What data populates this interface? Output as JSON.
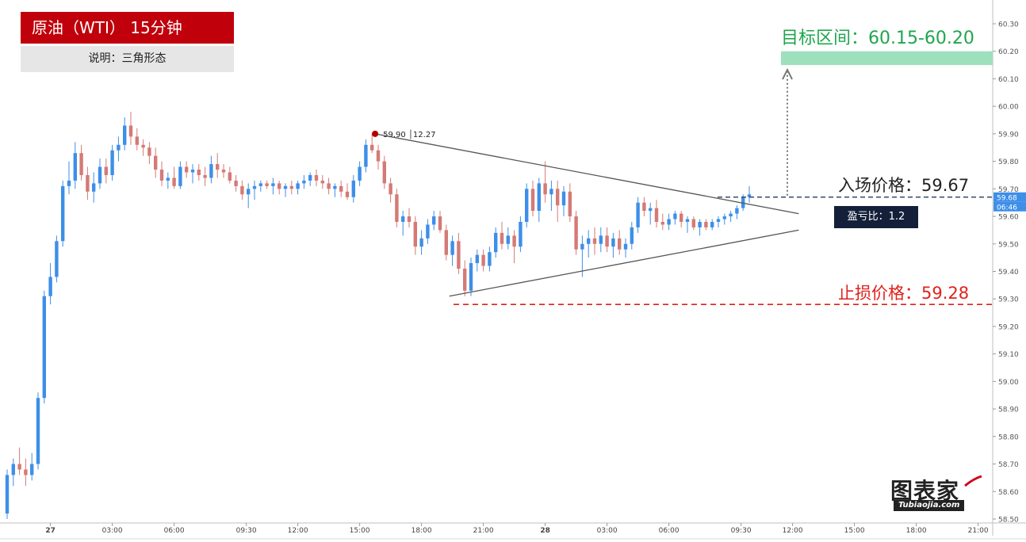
{
  "header": {
    "title": "原油（WTI） 15分钟",
    "description": "说明：三角形态"
  },
  "annotations": {
    "target_text": "目标区间：60.15-60.20",
    "entry_text": "入场价格：59.67",
    "stop_text": "止损价格：59.28",
    "risk_reward_text": "盈亏比：1.2",
    "high_marker_price": "59.90",
    "high_marker_time": "12.27",
    "current_price_tag": "59.68",
    "countdown_tag": "06:46"
  },
  "watermark": {
    "main": "图表家",
    "sub": "Tubiaojia.com"
  },
  "colors": {
    "up": "#3d8fe8",
    "down": "#d47a75",
    "target_zone": "#9edfbc",
    "target_text": "#1fa64d",
    "stop_line": "#e0211c",
    "entry_line": "#3b4a66",
    "triangle_line": "#555555",
    "title_bg": "#c0000b"
  },
  "chart_data": {
    "type": "candlestick",
    "title": "原油（WTI） 15分钟",
    "y_axis": {
      "side": "right",
      "range": [
        58.5,
        60.35
      ],
      "ticks": [
        "60.30",
        "60.20",
        "60.10",
        "60.00",
        "59.90",
        "59.80",
        "59.70",
        "59.60",
        "59.50",
        "59.40",
        "59.30",
        "59.20",
        "59.10",
        "59.00",
        "58.90",
        "58.80",
        "58.70",
        "58.60",
        "58.50"
      ]
    },
    "x_axis": {
      "labels": [
        {
          "label": "27",
          "t": 7
        },
        {
          "label": "03:00",
          "t": 17
        },
        {
          "label": "06:00",
          "t": 27
        },
        {
          "label": "09:30",
          "t": 38.67
        },
        {
          "label": "12:00",
          "t": 47
        },
        {
          "label": "15:00",
          "t": 57
        },
        {
          "label": "18:00",
          "t": 67
        },
        {
          "label": "21:00",
          "t": 77
        },
        {
          "label": "28",
          "t": 87
        },
        {
          "label": "03:00",
          "t": 97
        },
        {
          "label": "06:00",
          "t": 107
        },
        {
          "label": "09:30",
          "t": 118.67
        },
        {
          "label": "12:00",
          "t": 127
        },
        {
          "label": "15:00",
          "t": 137
        },
        {
          "label": "18:00",
          "t": 147
        },
        {
          "label": "21:00",
          "t": 157
        }
      ]
    },
    "grid": false,
    "candles_ohlc": [
      [
        58.52,
        58.68,
        58.5,
        58.66
      ],
      [
        58.66,
        58.72,
        58.62,
        58.7
      ],
      [
        58.7,
        58.76,
        58.66,
        58.68
      ],
      [
        58.68,
        58.72,
        58.62,
        58.66
      ],
      [
        58.66,
        58.74,
        58.64,
        58.7
      ],
      [
        58.7,
        58.96,
        58.68,
        58.94
      ],
      [
        58.94,
        59.33,
        58.92,
        59.31
      ],
      [
        59.31,
        59.43,
        59.28,
        59.38
      ],
      [
        59.38,
        59.53,
        59.36,
        59.51
      ],
      [
        59.51,
        59.73,
        59.49,
        59.71
      ],
      [
        59.71,
        59.8,
        59.68,
        59.73
      ],
      [
        59.73,
        59.87,
        59.7,
        59.83
      ],
      [
        59.83,
        59.86,
        59.73,
        59.75
      ],
      [
        59.75,
        59.78,
        59.66,
        59.69
      ],
      [
        59.69,
        59.76,
        59.65,
        59.72
      ],
      [
        59.72,
        59.81,
        59.7,
        59.78
      ],
      [
        59.78,
        59.81,
        59.72,
        59.75
      ],
      [
        59.75,
        59.86,
        59.73,
        59.84
      ],
      [
        59.84,
        59.89,
        59.8,
        59.86
      ],
      [
        59.86,
        59.96,
        59.84,
        59.93
      ],
      [
        59.93,
        59.98,
        59.86,
        59.89
      ],
      [
        59.89,
        59.92,
        59.84,
        59.86
      ],
      [
        59.86,
        59.88,
        59.82,
        59.85
      ],
      [
        59.85,
        59.87,
        59.79,
        59.82
      ],
      [
        59.82,
        59.85,
        59.74,
        59.77
      ],
      [
        59.77,
        59.8,
        59.71,
        59.73
      ],
      [
        59.73,
        59.76,
        59.7,
        59.74
      ],
      [
        59.74,
        59.78,
        59.7,
        59.71
      ],
      [
        59.71,
        59.8,
        59.7,
        59.78
      ],
      [
        59.78,
        59.8,
        59.74,
        59.76
      ],
      [
        59.76,
        59.79,
        59.72,
        59.77
      ],
      [
        59.77,
        59.79,
        59.73,
        59.75
      ],
      [
        59.75,
        59.78,
        59.71,
        59.74
      ],
      [
        59.74,
        59.82,
        59.72,
        59.79
      ],
      [
        59.79,
        59.83,
        59.74,
        59.77
      ],
      [
        59.77,
        59.79,
        59.74,
        59.76
      ],
      [
        59.76,
        59.78,
        59.72,
        59.73
      ],
      [
        59.73,
        59.75,
        59.69,
        59.71
      ],
      [
        59.71,
        59.73,
        59.66,
        59.68
      ],
      [
        59.68,
        59.72,
        59.63,
        59.7
      ],
      [
        59.7,
        59.73,
        59.66,
        59.71
      ],
      [
        59.71,
        59.73,
        59.69,
        59.72
      ],
      [
        59.72,
        59.73,
        59.7,
        59.71
      ],
      [
        59.71,
        59.74,
        59.68,
        59.72
      ],
      [
        59.72,
        59.73,
        59.68,
        59.7
      ],
      [
        59.7,
        59.72,
        59.67,
        59.71
      ],
      [
        59.71,
        59.73,
        59.68,
        59.7
      ],
      [
        59.7,
        59.73,
        59.68,
        59.72
      ],
      [
        59.72,
        59.75,
        59.7,
        59.73
      ],
      [
        59.73,
        59.76,
        59.71,
        59.75
      ],
      [
        59.75,
        59.77,
        59.71,
        59.73
      ],
      [
        59.73,
        59.75,
        59.7,
        59.72
      ],
      [
        59.72,
        59.74,
        59.68,
        59.7
      ],
      [
        59.7,
        59.72,
        59.67,
        59.71
      ],
      [
        59.71,
        59.73,
        59.67,
        59.69
      ],
      [
        59.69,
        59.72,
        59.66,
        59.67
      ],
      [
        59.67,
        59.75,
        59.65,
        59.73
      ],
      [
        59.73,
        59.8,
        59.71,
        59.78
      ],
      [
        59.78,
        59.88,
        59.76,
        59.86
      ],
      [
        59.86,
        59.9,
        59.83,
        59.84
      ],
      [
        59.84,
        59.86,
        59.77,
        59.8
      ],
      [
        59.8,
        59.82,
        59.7,
        59.72
      ],
      [
        59.72,
        59.74,
        59.65,
        59.68
      ],
      [
        59.68,
        59.7,
        59.56,
        59.58
      ],
      [
        59.58,
        59.62,
        59.53,
        59.6
      ],
      [
        59.6,
        59.63,
        59.56,
        59.58
      ],
      [
        59.58,
        59.6,
        59.46,
        59.49
      ],
      [
        59.49,
        59.55,
        59.46,
        59.52
      ],
      [
        59.52,
        59.59,
        59.5,
        59.57
      ],
      [
        59.57,
        59.62,
        59.55,
        59.6
      ],
      [
        59.6,
        59.62,
        59.54,
        59.55
      ],
      [
        59.55,
        59.57,
        59.44,
        59.46
      ],
      [
        59.46,
        59.53,
        59.42,
        59.51
      ],
      [
        59.51,
        59.54,
        59.39,
        59.41
      ],
      [
        59.41,
        59.44,
        59.31,
        59.33
      ],
      [
        59.33,
        59.45,
        59.31,
        59.43
      ],
      [
        59.43,
        59.48,
        59.4,
        59.46
      ],
      [
        59.46,
        59.48,
        59.4,
        59.42
      ],
      [
        59.42,
        59.49,
        59.4,
        59.47
      ],
      [
        59.47,
        59.56,
        59.45,
        59.54
      ],
      [
        59.54,
        59.58,
        59.48,
        59.5
      ],
      [
        59.5,
        59.56,
        59.48,
        59.53
      ],
      [
        59.53,
        59.55,
        59.43,
        59.49
      ],
      [
        59.49,
        59.6,
        59.47,
        59.58
      ],
      [
        59.58,
        59.72,
        59.56,
        59.7
      ],
      [
        59.7,
        59.73,
        59.6,
        59.62
      ],
      [
        59.62,
        59.74,
        59.58,
        59.72
      ],
      [
        59.72,
        59.8,
        59.65,
        59.68
      ],
      [
        59.68,
        59.73,
        59.62,
        59.7
      ],
      [
        59.7,
        59.73,
        59.58,
        59.64
      ],
      [
        59.64,
        59.71,
        59.6,
        59.69
      ],
      [
        59.69,
        59.72,
        59.58,
        59.6
      ],
      [
        59.6,
        59.62,
        59.46,
        59.48
      ],
      [
        59.48,
        59.53,
        59.38,
        59.5
      ],
      [
        59.5,
        59.55,
        59.45,
        59.52
      ],
      [
        59.52,
        59.56,
        59.46,
        59.5
      ],
      [
        59.5,
        59.56,
        59.47,
        59.53
      ],
      [
        59.53,
        59.56,
        59.47,
        59.49
      ],
      [
        59.49,
        59.54,
        59.45,
        59.52
      ],
      [
        59.52,
        59.55,
        59.46,
        59.48
      ],
      [
        59.48,
        59.52,
        59.45,
        59.5
      ],
      [
        59.5,
        59.58,
        59.48,
        59.56
      ],
      [
        59.56,
        59.67,
        59.54,
        59.65
      ],
      [
        59.65,
        59.67,
        59.6,
        59.62
      ],
      [
        59.62,
        59.65,
        59.57,
        59.63
      ],
      [
        59.63,
        59.66,
        59.56,
        59.58
      ],
      [
        59.58,
        59.61,
        59.55,
        59.57
      ],
      [
        59.57,
        59.61,
        59.55,
        59.59
      ],
      [
        59.59,
        59.62,
        59.57,
        59.61
      ],
      [
        59.61,
        59.62,
        59.56,
        59.58
      ],
      [
        59.58,
        59.6,
        59.54,
        59.59
      ],
      [
        59.59,
        59.6,
        59.55,
        59.56
      ],
      [
        59.56,
        59.59,
        59.53,
        59.58
      ],
      [
        59.58,
        59.59,
        59.55,
        59.56
      ],
      [
        59.56,
        59.59,
        59.55,
        59.58
      ],
      [
        59.58,
        59.6,
        59.56,
        59.59
      ],
      [
        59.59,
        59.61,
        59.57,
        59.6
      ],
      [
        59.6,
        59.62,
        59.58,
        59.61
      ],
      [
        59.61,
        59.64,
        59.59,
        59.63
      ],
      [
        59.63,
        59.68,
        59.62,
        59.67
      ],
      [
        59.67,
        59.71,
        59.65,
        59.68
      ]
    ],
    "drawings": {
      "triangle_upper": [
        [
          59.5,
          59.9
        ],
        [
          128,
          59.61
        ]
      ],
      "triangle_lower": [
        [
          71.5,
          59.31
        ],
        [
          128,
          59.55
        ]
      ],
      "entry_price": 59.67,
      "stop_price": 59.28,
      "target_zone": [
        60.15,
        60.2
      ],
      "high_marker": {
        "t": 59.5,
        "price": 59.9
      }
    }
  }
}
